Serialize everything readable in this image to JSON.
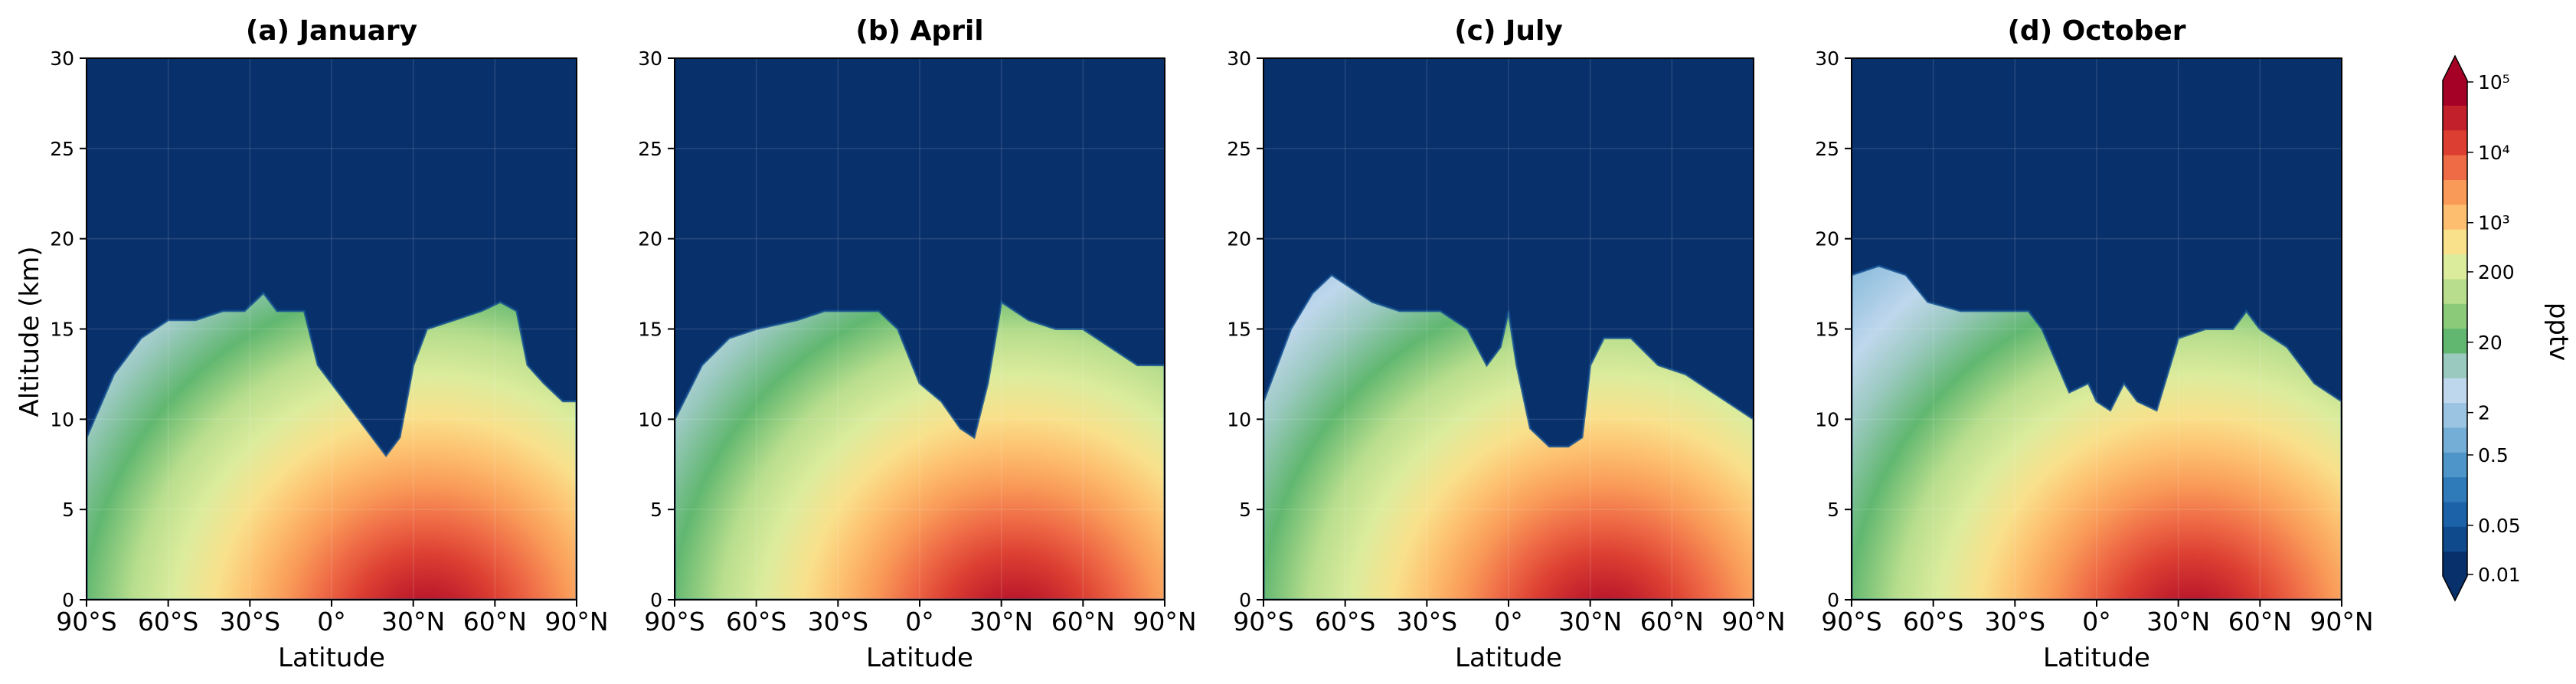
{
  "figure": {
    "ylabel": "Altitude (km)",
    "xlabel": "Latitude",
    "colorbar_label": "pptv"
  },
  "chart_data": [
    {
      "type": "heatmap",
      "title": "(a) January",
      "xlabel": "Latitude",
      "ylabel": "Altitude (km)",
      "xlim": [
        -90,
        90
      ],
      "ylim": [
        0,
        30
      ],
      "x_ticks": [
        -90,
        -60,
        -30,
        0,
        30,
        60,
        90
      ],
      "x_tick_labels": [
        "90°S",
        "60°S",
        "30°S",
        "0°",
        "30°N",
        "60°N",
        "90°N"
      ],
      "y_ticks": [
        0,
        5,
        10,
        15,
        20,
        25,
        30
      ],
      "y_tick_labels": [
        "0",
        "5",
        "10",
        "15",
        "20",
        "25",
        "30"
      ],
      "grid": true,
      "top_boundary_km": [
        [
          -90,
          9
        ],
        [
          -80,
          12.5
        ],
        [
          -70,
          14.5
        ],
        [
          -60,
          15.5
        ],
        [
          -50,
          15.5
        ],
        [
          -40,
          16
        ],
        [
          -32,
          16
        ],
        [
          -25,
          17
        ],
        [
          -20,
          16
        ],
        [
          -10,
          16
        ],
        [
          -5,
          13
        ],
        [
          0,
          12
        ],
        [
          5,
          11
        ],
        [
          10,
          10
        ],
        [
          15,
          9
        ],
        [
          20,
          8
        ],
        [
          25,
          9
        ],
        [
          30,
          13
        ],
        [
          35,
          15
        ],
        [
          45,
          15.5
        ],
        [
          55,
          16
        ],
        [
          62,
          16.5
        ],
        [
          68,
          16
        ],
        [
          72,
          13
        ],
        [
          78,
          12
        ],
        [
          85,
          11
        ],
        [
          90,
          11
        ]
      ],
      "max_region": "near-surface 30°N–60°N, Northern Hemisphere",
      "notes": "Southern high latitudes and the upper atmosphere (above ~17 km) are at the minimum (≤0.01 pptv); enhanced values (10^2–10^3 pptv) extend up to ~12 km near 30°S."
    },
    {
      "type": "heatmap",
      "title": "(b) April",
      "xlabel": "Latitude",
      "xlim": [
        -90,
        90
      ],
      "ylim": [
        0,
        30
      ],
      "x_ticks": [
        -90,
        -60,
        -30,
        0,
        30,
        60,
        90
      ],
      "x_tick_labels": [
        "90°S",
        "60°S",
        "30°S",
        "0°",
        "30°N",
        "60°N",
        "90°N"
      ],
      "y_ticks": [
        0,
        5,
        10,
        15,
        20,
        25,
        30
      ],
      "y_tick_labels": [
        "0",
        "5",
        "10",
        "15",
        "20",
        "25",
        "30"
      ],
      "grid": true,
      "top_boundary_km": [
        [
          -90,
          10
        ],
        [
          -80,
          13
        ],
        [
          -70,
          14.5
        ],
        [
          -60,
          15
        ],
        [
          -45,
          15.5
        ],
        [
          -35,
          16
        ],
        [
          -25,
          16
        ],
        [
          -15,
          16
        ],
        [
          -8,
          15
        ],
        [
          0,
          12
        ],
        [
          8,
          11
        ],
        [
          15,
          9.5
        ],
        [
          20,
          9
        ],
        [
          25,
          12
        ],
        [
          30,
          16.5
        ],
        [
          40,
          15.5
        ],
        [
          50,
          15
        ],
        [
          60,
          15
        ],
        [
          70,
          14
        ],
        [
          80,
          13
        ],
        [
          90,
          13
        ]
      ],
      "max_region": "near-surface 0°–60°N",
      "notes": "Enhanced values (10^2–10^3 pptv) extend up to ~11 km near 20°S–30°S."
    },
    {
      "type": "heatmap",
      "title": "(c) July",
      "xlabel": "Latitude",
      "xlim": [
        -90,
        90
      ],
      "ylim": [
        0,
        30
      ],
      "x_ticks": [
        -90,
        -60,
        -30,
        0,
        30,
        60,
        90
      ],
      "x_tick_labels": [
        "90°S",
        "60°S",
        "30°S",
        "0°",
        "30°N",
        "60°N",
        "90°N"
      ],
      "y_ticks": [
        0,
        5,
        10,
        15,
        20,
        25,
        30
      ],
      "y_tick_labels": [
        "0",
        "5",
        "10",
        "15",
        "20",
        "25",
        "30"
      ],
      "grid": true,
      "top_boundary_km": [
        [
          -90,
          11
        ],
        [
          -80,
          15
        ],
        [
          -72,
          17
        ],
        [
          -65,
          18
        ],
        [
          -60,
          17.5
        ],
        [
          -50,
          16.5
        ],
        [
          -40,
          16
        ],
        [
          -25,
          16
        ],
        [
          -15,
          15
        ],
        [
          -8,
          13
        ],
        [
          -3,
          14
        ],
        [
          0,
          16
        ],
        [
          3,
          13
        ],
        [
          8,
          9.5
        ],
        [
          15,
          8.5
        ],
        [
          22,
          8.5
        ],
        [
          27,
          9
        ],
        [
          30,
          13
        ],
        [
          35,
          14.5
        ],
        [
          45,
          14.5
        ],
        [
          55,
          13
        ],
        [
          65,
          12.5
        ],
        [
          75,
          11.5
        ],
        [
          85,
          10.5
        ],
        [
          90,
          10
        ]
      ],
      "max_region": "near-surface 30°N–50°N",
      "notes": "Tropical-plume structure near the equator; enhanced values (20–200 pptv) reach ~11 km around 30°S."
    },
    {
      "type": "heatmap",
      "title": "(d) October",
      "xlabel": "Latitude",
      "xlim": [
        -90,
        90
      ],
      "ylim": [
        0,
        30
      ],
      "x_ticks": [
        -90,
        -60,
        -30,
        0,
        30,
        60,
        90
      ],
      "x_tick_labels": [
        "90°S",
        "60°S",
        "30°S",
        "0°",
        "30°N",
        "60°N",
        "90°N"
      ],
      "y_ticks": [
        0,
        5,
        10,
        15,
        20,
        25,
        30
      ],
      "y_tick_labels": [
        "0",
        "5",
        "10",
        "15",
        "20",
        "25",
        "30"
      ],
      "grid": true,
      "top_boundary_km": [
        [
          -90,
          18
        ],
        [
          -80,
          18.5
        ],
        [
          -70,
          18
        ],
        [
          -62,
          16.5
        ],
        [
          -50,
          16
        ],
        [
          -35,
          16
        ],
        [
          -25,
          16
        ],
        [
          -20,
          15
        ],
        [
          -10,
          11.5
        ],
        [
          -3,
          12
        ],
        [
          0,
          11
        ],
        [
          5,
          10.5
        ],
        [
          10,
          12
        ],
        [
          15,
          11
        ],
        [
          22,
          10.5
        ],
        [
          30,
          14.5
        ],
        [
          40,
          15
        ],
        [
          50,
          15
        ],
        [
          55,
          16
        ],
        [
          60,
          15
        ],
        [
          70,
          14
        ],
        [
          80,
          12
        ],
        [
          90,
          11
        ]
      ],
      "max_region": "near-surface 20°N–60°N",
      "notes": "Southern polar column has the low-concentration blue layers reaching ~18 km; enhanced values (10^2–10^3 pptv) reach ~13 km near 30°S."
    }
  ],
  "colorbar": {
    "scale": "log",
    "units": "pptv",
    "extend": "both",
    "tick_labels": [
      "0.01",
      "0.05",
      "0.5",
      "2",
      "20",
      "200",
      "10³",
      "10⁴",
      "10⁵"
    ],
    "tick_levels": [
      0.01,
      0.05,
      0.5,
      2,
      20,
      200,
      1000,
      10000,
      100000
    ],
    "level_colors": [
      "#08306b",
      "#0f4a8d",
      "#1c62a8",
      "#2f7ab9",
      "#4e96ca",
      "#74aed6",
      "#9ac4e1",
      "#bfd7ec",
      "#9ac9bf",
      "#61b770",
      "#8bca78",
      "#b8de8d",
      "#dcec9d",
      "#f9e08b",
      "#fdbf6f",
      "#f99a58",
      "#ef6b46",
      "#dc3f32",
      "#c2212c",
      "#a50026"
    ],
    "color_min": "#08306b",
    "color_max": "#a50026"
  }
}
